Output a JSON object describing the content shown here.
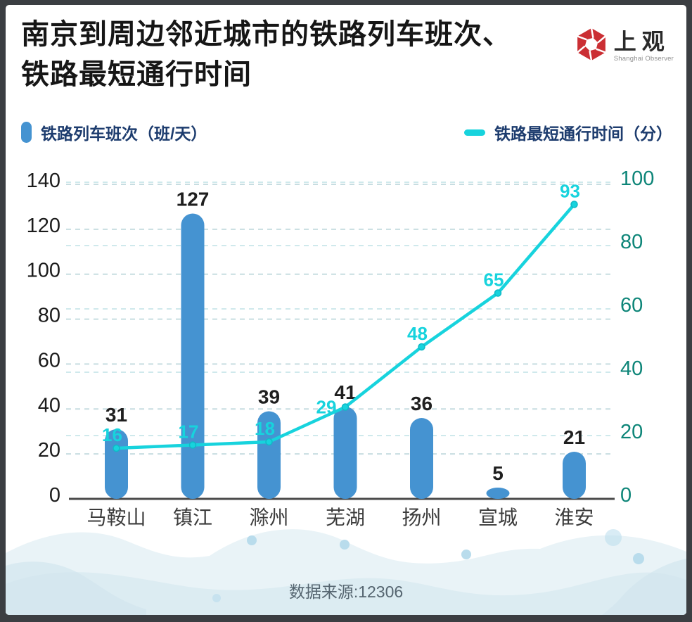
{
  "header": {
    "title_line1": "南京到周边邻近城市的铁路列车班次、",
    "title_line2": "铁路最短通行时间",
    "logo": {
      "name": "上观",
      "subtitle": "Shanghai Observer",
      "color": "#cb2f34"
    }
  },
  "legend": [
    {
      "label": "铁路列车班次（班/天）",
      "type": "bar",
      "color": "#4593d1"
    },
    {
      "label": "铁路最短通行时间（分）",
      "type": "line",
      "color": "#17d3dd"
    }
  ],
  "chart_data": {
    "type": "bar+line",
    "categories": [
      "马鞍山",
      "镇江",
      "滁州",
      "芜湖",
      "扬州",
      "宣城",
      "淮安"
    ],
    "series": [
      {
        "name": "铁路列车班次（班/天）",
        "type": "bar",
        "axis": "left",
        "color": "#4593d1",
        "values": [
          31,
          127,
          39,
          41,
          36,
          5,
          21
        ]
      },
      {
        "name": "铁路最短通行时间（分）",
        "type": "line",
        "axis": "right",
        "color": "#17d3dd",
        "marker_stroke": "#10b9c6",
        "values": [
          16,
          17,
          18,
          29,
          48,
          65,
          93
        ]
      }
    ],
    "left_axis": {
      "min": 0,
      "max": 140,
      "step": 20,
      "tick_color": "#1c1c1c"
    },
    "right_axis": {
      "min": 0,
      "max": 100,
      "step": 20,
      "tick_color": "#0d8578"
    },
    "grid": {
      "style": "dashed",
      "left_color": "#c7dde1",
      "right_color": "#cfe9ec"
    },
    "axis_line_color": "#4a4a4a",
    "category_label_color": "#3c3c3c",
    "bar_label_color": "#1f1f1f",
    "legend_position": "top"
  },
  "footer": {
    "source": "数据来源:12306"
  }
}
